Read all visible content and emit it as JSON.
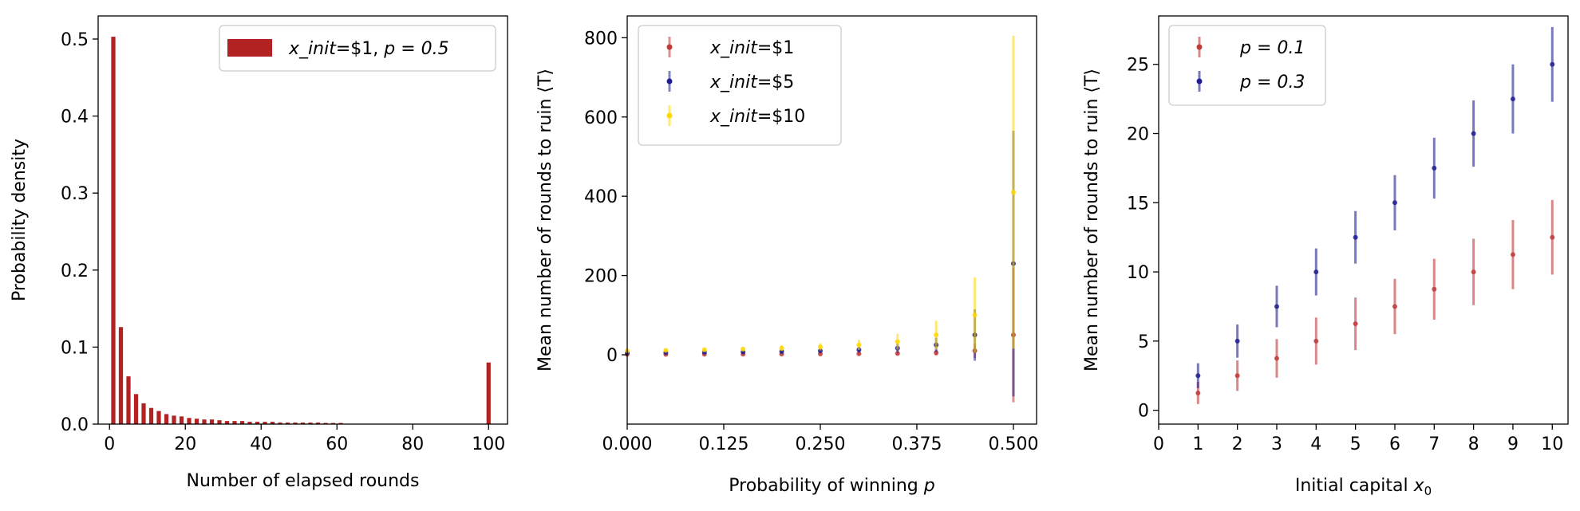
{
  "chart_data": [
    {
      "type": "bar",
      "xlabel": "Number of elapsed rounds",
      "ylabel": "Probability density",
      "xlim": [
        -3,
        105
      ],
      "ylim": [
        0,
        0.53
      ],
      "xticks": [
        "0",
        "20",
        "40",
        "60",
        "80",
        "100"
      ],
      "yticks": [
        "0.0",
        "0.1",
        "0.2",
        "0.3",
        "0.4",
        "0.5"
      ],
      "legend": {
        "position": "top-right",
        "entries": [
          {
            "prefix": "x_init",
            "suffix": "=$1, ",
            "math": "p = 0.5",
            "color": "#b22222"
          }
        ]
      },
      "series": [
        {
          "name": "x_init=$1, p=0.5",
          "color": "#b22222",
          "x": [
            1,
            3,
            5,
            7,
            9,
            11,
            13,
            15,
            17,
            19,
            21,
            23,
            25,
            27,
            29,
            31,
            33,
            35,
            37,
            39,
            41,
            43,
            45,
            47,
            49,
            51,
            53,
            55,
            57,
            59,
            61,
            100
          ],
          "values": [
            0.503,
            0.126,
            0.062,
            0.039,
            0.027,
            0.021,
            0.017,
            0.013,
            0.011,
            0.01,
            0.008,
            0.007,
            0.006,
            0.006,
            0.005,
            0.004,
            0.004,
            0.004,
            0.003,
            0.003,
            0.003,
            0.003,
            0.002,
            0.002,
            0.002,
            0.002,
            0.002,
            0.002,
            0.0015,
            0.0015,
            0.0015,
            0.08
          ]
        }
      ]
    },
    {
      "type": "scatter",
      "xlabel": "Probability of winning",
      "xlabel_math": "p",
      "ylabel": "Mean number of rounds to ruin ⟨T⟩",
      "xlim": [
        0,
        0.53
      ],
      "ylim": [
        -175,
        855
      ],
      "xticks": [
        "0.000",
        "0.125",
        "0.250",
        "0.375",
        "0.500"
      ],
      "yticks": [
        "0",
        "200",
        "400",
        "600",
        "800"
      ],
      "legend": {
        "position": "top-left",
        "entries": [
          {
            "prefix": "x_init",
            "suffix": "=$1",
            "color": "#c0393b"
          },
          {
            "prefix": "x_init",
            "suffix": "=$5",
            "color": "#1f1f8f"
          },
          {
            "prefix": "x_init",
            "suffix": "=$10",
            "color": "#ffd700"
          }
        ]
      },
      "series": [
        {
          "name": "x_init=$1",
          "color": "#c0393b",
          "x": [
            0.0,
            0.05,
            0.1,
            0.15,
            0.2,
            0.25,
            0.3,
            0.35,
            0.4,
            0.45,
            0.5
          ],
          "values": [
            1,
            1.1,
            1.25,
            1.4,
            1.7,
            2,
            2.5,
            3.3,
            5,
            10,
            50
          ],
          "err": [
            0,
            0.3,
            0.6,
            0.9,
            1.3,
            1.7,
            2.5,
            4,
            7,
            18,
            170
          ]
        },
        {
          "name": "x_init=$5",
          "color": "#1f1f8f",
          "x": [
            0.0,
            0.05,
            0.1,
            0.15,
            0.2,
            0.25,
            0.3,
            0.35,
            0.4,
            0.45,
            0.5
          ],
          "values": [
            5,
            5.6,
            6.25,
            7.1,
            8.3,
            10,
            12.5,
            16.7,
            25,
            50,
            230
          ],
          "err": [
            0,
            1,
            2,
            3,
            4,
            5,
            7,
            11,
            18,
            65,
            335
          ]
        },
        {
          "name": "x_init=$10",
          "color": "#ffd700",
          "x": [
            0.0,
            0.05,
            0.1,
            0.15,
            0.2,
            0.25,
            0.3,
            0.35,
            0.4,
            0.45,
            0.5
          ],
          "values": [
            10,
            11.1,
            12.5,
            14.3,
            16.7,
            20,
            25,
            33,
            50,
            100,
            410
          ],
          "err": [
            0,
            2,
            4,
            5,
            7,
            9,
            13,
            20,
            36,
            95,
            395
          ]
        }
      ]
    },
    {
      "type": "scatter",
      "xlabel": "Initial capital",
      "xlabel_math": "x",
      "xlabel_sub": "0",
      "ylabel": "Mean number of rounds to ruin ⟨T⟩",
      "xlim": [
        0,
        10.4
      ],
      "ylim": [
        -1,
        28.5
      ],
      "xticks": [
        "0",
        "1",
        "2",
        "3",
        "4",
        "5",
        "6",
        "7",
        "8",
        "9",
        "10"
      ],
      "yticks": [
        "0",
        "5",
        "10",
        "15",
        "20",
        "25"
      ],
      "legend": {
        "position": "top-left",
        "entries": [
          {
            "math": "p = 0.1",
            "color": "#c0393b"
          },
          {
            "math": "p = 0.3",
            "color": "#1f1f8f"
          }
        ]
      },
      "series": [
        {
          "name": "p=0.1",
          "color": "#c0393b",
          "x": [
            1,
            2,
            3,
            4,
            5,
            6,
            7,
            8,
            9,
            10
          ],
          "values": [
            1.25,
            2.5,
            3.75,
            5.0,
            6.25,
            7.5,
            8.75,
            10.0,
            11.25,
            12.5
          ],
          "err": [
            0.8,
            1.1,
            1.4,
            1.7,
            1.9,
            2.0,
            2.2,
            2.4,
            2.5,
            2.7
          ]
        },
        {
          "name": "p=0.3",
          "color": "#1f1f8f",
          "x": [
            1,
            2,
            3,
            4,
            5,
            6,
            7,
            8,
            9,
            10
          ],
          "values": [
            2.5,
            5.0,
            7.5,
            10.0,
            12.5,
            15.0,
            17.5,
            20.0,
            22.5,
            25.0
          ],
          "err": [
            0.9,
            1.2,
            1.5,
            1.7,
            1.9,
            2.0,
            2.2,
            2.4,
            2.5,
            2.7
          ]
        }
      ]
    }
  ]
}
